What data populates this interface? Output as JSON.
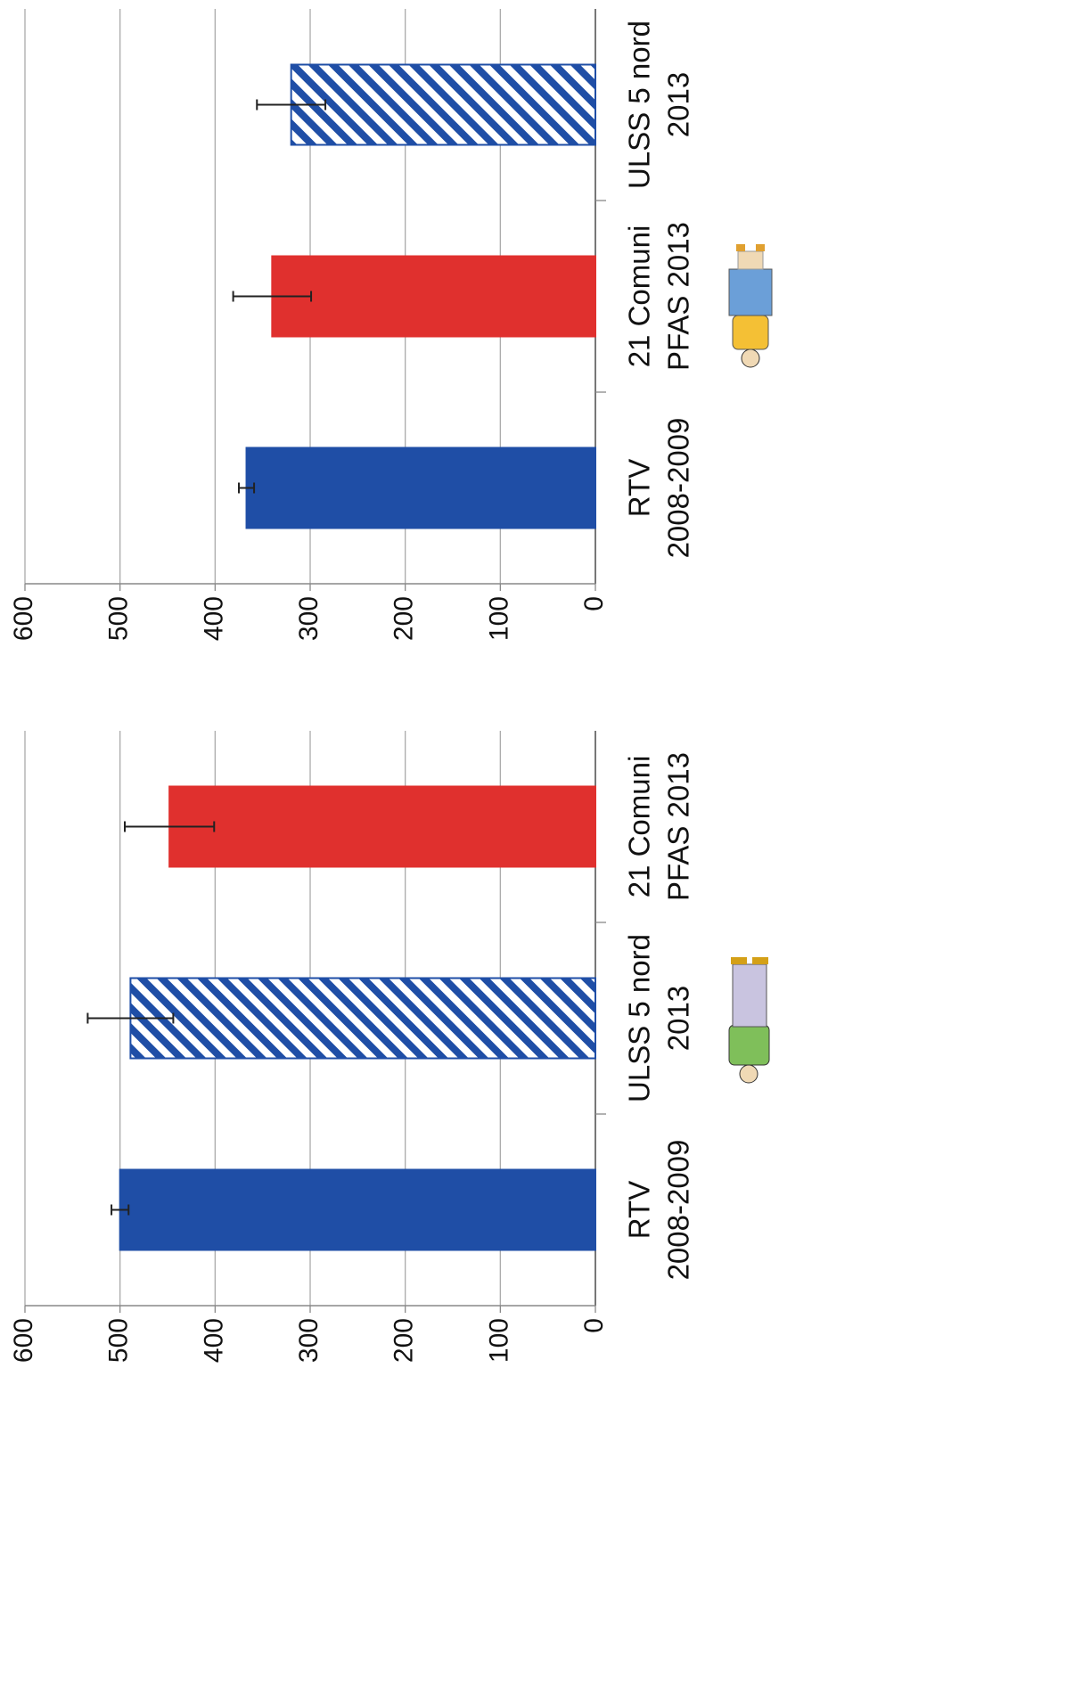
{
  "chart_data": [
    {
      "type": "bar",
      "categories": [
        [
          "RTV",
          "2008-2009"
        ],
        [
          "ULSS 5 nord",
          "2013"
        ],
        [
          "21 Comuni",
          "PFAS 2013"
        ]
      ],
      "values": [
        500,
        489,
        448
      ],
      "errors": [
        9,
        45,
        47
      ],
      "colors": [
        "#1f4ea6",
        "#1f4ea6",
        "#e0302e"
      ],
      "styles": [
        "solid",
        "hatched",
        "solid"
      ],
      "ylim": [
        0,
        600
      ],
      "yticks": [
        0,
        100,
        200,
        300,
        400,
        500,
        600
      ],
      "grid": true
    },
    {
      "type": "bar",
      "categories": [
        [
          "RTV",
          "2008-2009"
        ],
        [
          "21 Comuni",
          "PFAS 2013"
        ],
        [
          "ULSS 5 nord",
          "2013"
        ]
      ],
      "values": [
        367,
        340,
        320
      ],
      "errors": [
        8,
        41,
        36
      ],
      "colors": [
        "#1f4ea6",
        "#e0302e",
        "#1f4ea6"
      ],
      "styles": [
        "solid",
        "solid",
        "hatched"
      ],
      "ylim": [
        0,
        600
      ],
      "yticks": [
        0,
        100,
        200,
        300,
        400,
        500,
        600
      ],
      "grid": true
    }
  ]
}
